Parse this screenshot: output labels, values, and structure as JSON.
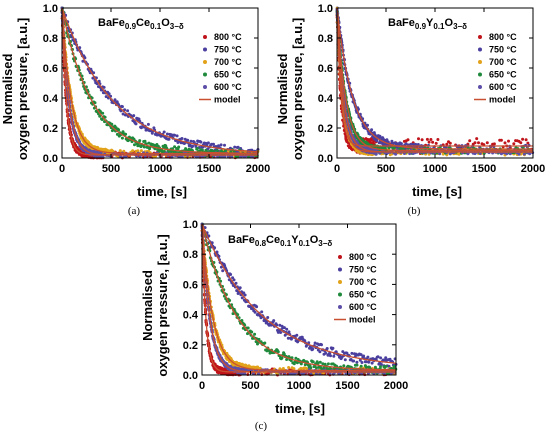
{
  "chart_data": [
    {
      "type": "scatter",
      "panel_label": "(a)",
      "compound": {
        "base": "BaFe",
        "parts": [
          [
            "0.9",
            "sub"
          ],
          [
            "Ce",
            "n"
          ],
          [
            "0.1",
            "sub"
          ],
          [
            "O",
            "n"
          ],
          [
            "3−δ",
            "sub"
          ]
        ]
      },
      "xlabel": "time, [s]",
      "ylabel": [
        "Normalised",
        "oxygen pressure, [a.u.]"
      ],
      "xlim": [
        0,
        2000
      ],
      "ylim": [
        0,
        1.0
      ],
      "xticks": [
        "0",
        "500",
        "1000",
        "1500",
        "2000"
      ],
      "yticks": [
        "0.0",
        "0.2",
        "0.4",
        "0.6",
        "0.8",
        "1.0"
      ],
      "legend_position": "right",
      "series": [
        {
          "name": "800 °C",
          "color": "#c0141b",
          "tau": 45,
          "floor": 0.02,
          "noise": 0.02
        },
        {
          "name": "750 °C",
          "color": "#4a3f9e",
          "tau": 520,
          "floor": 0.02,
          "noise": 0.025
        },
        {
          "name": "700 °C",
          "color": "#e2a21a",
          "tau": 95,
          "floor": 0.03,
          "noise": 0.02
        },
        {
          "name": "650 °C",
          "color": "#1f8a3c",
          "tau": 300,
          "floor": 0.03,
          "noise": 0.025
        },
        {
          "name": "600 °C",
          "color": "#5d4fa8",
          "tau": 70,
          "floor": 0.02,
          "noise": 0.015
        }
      ],
      "model": {
        "name": "model",
        "color": "#c85030"
      }
    },
    {
      "type": "scatter",
      "panel_label": "(b)",
      "compound": {
        "base": "BaFe",
        "parts": [
          [
            "0.9",
            "sub"
          ],
          [
            "Y",
            "n"
          ],
          [
            "0.1",
            "sub"
          ],
          [
            "O",
            "n"
          ],
          [
            "3−δ",
            "sub"
          ]
        ]
      },
      "xlabel": "time, [s]",
      "ylabel": [
        "Normalised",
        "oxygen pressure, [a.u.]"
      ],
      "xlim": [
        0,
        2000
      ],
      "ylim": [
        0,
        1.0
      ],
      "xticks": [
        "0",
        "500",
        "1000",
        "1500",
        "2000"
      ],
      "yticks": [
        "0.0",
        "0.2",
        "0.4",
        "0.6",
        "0.8",
        "1.0"
      ],
      "legend_position": "right",
      "series": [
        {
          "name": "800 °C",
          "color": "#c0141b",
          "tau": 40,
          "floor": 0.08,
          "noise": 0.05
        },
        {
          "name": "750 °C",
          "color": "#4a3f9e",
          "tau": 160,
          "floor": 0.06,
          "noise": 0.025
        },
        {
          "name": "700 °C",
          "color": "#e2a21a",
          "tau": 55,
          "floor": 0.04,
          "noise": 0.02
        },
        {
          "name": "650 °C",
          "color": "#1f8a3c",
          "tau": 90,
          "floor": 0.05,
          "noise": 0.02
        },
        {
          "name": "600 °C",
          "color": "#5d4fa8",
          "tau": 70,
          "floor": 0.04,
          "noise": 0.015
        }
      ],
      "model": {
        "name": "model",
        "color": "#c85030"
      }
    },
    {
      "type": "scatter",
      "panel_label": "(c)",
      "compound": {
        "base": "BaFe",
        "parts": [
          [
            "0.8",
            "sub"
          ],
          [
            "Ce",
            "n"
          ],
          [
            "0.1",
            "sub"
          ],
          [
            "Y",
            "n"
          ],
          [
            "0.1",
            "sub"
          ],
          [
            "O",
            "n"
          ],
          [
            "3−δ",
            "sub"
          ]
        ]
      },
      "xlabel": "time, [s]",
      "ylabel": [
        "Normalised",
        "oxygen pressure, [a.u.]"
      ],
      "xlim": [
        0,
        2000
      ],
      "ylim": [
        0,
        1.0
      ],
      "xticks": [
        "0",
        "500",
        "1000",
        "1500",
        "2000"
      ],
      "yticks": [
        "0.0",
        "0.2",
        "0.4",
        "0.6",
        "0.8",
        "1.0"
      ],
      "legend_position": "right",
      "series": [
        {
          "name": "800 °C",
          "color": "#c0141b",
          "tau": 40,
          "floor": 0.02,
          "noise": 0.02
        },
        {
          "name": "750 °C",
          "color": "#4a3f9e",
          "tau": 620,
          "floor": 0.04,
          "noise": 0.03
        },
        {
          "name": "700 °C",
          "color": "#e2a21a",
          "tau": 110,
          "floor": 0.03,
          "noise": 0.02
        },
        {
          "name": "650 °C",
          "color": "#1f8a3c",
          "tau": 360,
          "floor": 0.03,
          "noise": 0.025
        },
        {
          "name": "600 °C",
          "color": "#5d4fa8",
          "tau": 80,
          "floor": 0.02,
          "noise": 0.015
        }
      ],
      "model": {
        "name": "model",
        "color": "#c85030"
      }
    }
  ]
}
